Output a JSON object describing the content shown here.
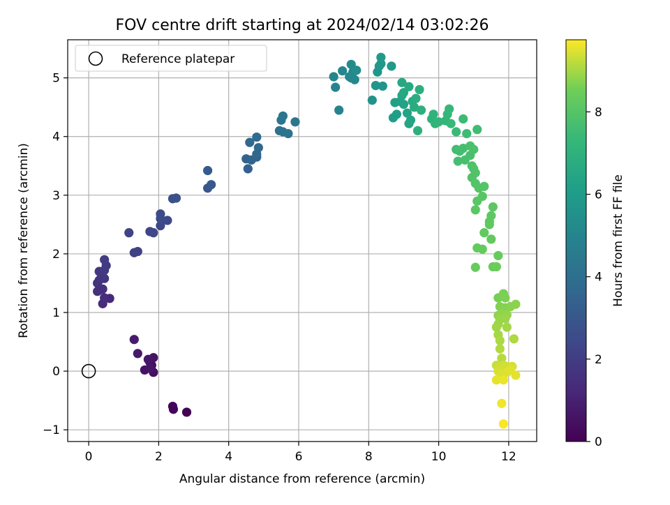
{
  "chart_data": {
    "type": "scatter",
    "title": "FOV centre drift starting at 2024/02/14 03:02:26",
    "xlabel": "Angular distance from reference (arcmin)",
    "ylabel": "Rotation from reference (arcmin)",
    "colorbar_label": "Hours from first FF file",
    "colormap": "viridis",
    "xlim": [
      -0.6,
      12.8
    ],
    "ylim": [
      -1.2,
      5.65
    ],
    "clim": [
      0,
      9.75
    ],
    "x_ticks": [
      0,
      2,
      4,
      6,
      8,
      10,
      12
    ],
    "x_tick_labels": [
      "0",
      "2",
      "4",
      "6",
      "8",
      "10",
      "12"
    ],
    "y_ticks": [
      -1,
      0,
      1,
      2,
      3,
      4,
      5
    ],
    "y_tick_labels": [
      "−1",
      "0",
      "1",
      "2",
      "3",
      "4",
      "5"
    ],
    "colorbar_ticks": [
      0,
      2,
      4,
      6,
      8
    ],
    "colorbar_tick_labels": [
      "0",
      "2",
      "4",
      "6",
      "8"
    ],
    "grid": true,
    "legend": {
      "placement": "top-left",
      "label": "Reference platepar"
    },
    "reference_point": {
      "x": 0,
      "y": 0
    },
    "points": [
      {
        "x": 2.8,
        "y": -0.7,
        "c": 0.0
      },
      {
        "x": 2.4,
        "y": -0.6,
        "c": 0.1
      },
      {
        "x": 2.42,
        "y": -0.65,
        "c": 0.15
      },
      {
        "x": 1.85,
        "y": -0.02,
        "c": 0.4
      },
      {
        "x": 1.8,
        "y": 0.1,
        "c": 0.45
      },
      {
        "x": 1.75,
        "y": 0.15,
        "c": 0.5
      },
      {
        "x": 1.85,
        "y": 0.23,
        "c": 0.55
      },
      {
        "x": 1.6,
        "y": 0.02,
        "c": 0.6
      },
      {
        "x": 1.75,
        "y": 0.05,
        "c": 0.65
      },
      {
        "x": 1.7,
        "y": 0.2,
        "c": 0.7
      },
      {
        "x": 1.4,
        "y": 0.3,
        "c": 0.75
      },
      {
        "x": 1.3,
        "y": 0.54,
        "c": 0.8
      },
      {
        "x": 0.6,
        "y": 1.24,
        "c": 1.3
      },
      {
        "x": 0.4,
        "y": 1.15,
        "c": 1.35
      },
      {
        "x": 0.45,
        "y": 1.25,
        "c": 1.4
      },
      {
        "x": 0.3,
        "y": 1.38,
        "c": 1.45
      },
      {
        "x": 0.25,
        "y": 1.36,
        "c": 1.5
      },
      {
        "x": 0.4,
        "y": 1.4,
        "c": 1.55
      },
      {
        "x": 0.25,
        "y": 1.5,
        "c": 1.6
      },
      {
        "x": 0.3,
        "y": 1.55,
        "c": 1.65
      },
      {
        "x": 0.35,
        "y": 1.58,
        "c": 1.7
      },
      {
        "x": 0.45,
        "y": 1.58,
        "c": 1.75
      },
      {
        "x": 0.3,
        "y": 1.7,
        "c": 1.8
      },
      {
        "x": 0.45,
        "y": 1.72,
        "c": 1.85
      },
      {
        "x": 0.5,
        "y": 1.8,
        "c": 1.9
      },
      {
        "x": 0.45,
        "y": 1.9,
        "c": 1.95
      },
      {
        "x": 1.3,
        "y": 2.02,
        "c": 2.1
      },
      {
        "x": 1.4,
        "y": 2.04,
        "c": 2.15
      },
      {
        "x": 1.15,
        "y": 2.36,
        "c": 2.2
      },
      {
        "x": 1.75,
        "y": 2.38,
        "c": 2.3
      },
      {
        "x": 1.85,
        "y": 2.36,
        "c": 2.35
      },
      {
        "x": 2.05,
        "y": 2.48,
        "c": 2.4
      },
      {
        "x": 2.25,
        "y": 2.57,
        "c": 2.45
      },
      {
        "x": 2.05,
        "y": 2.6,
        "c": 2.5
      },
      {
        "x": 2.05,
        "y": 2.68,
        "c": 2.55
      },
      {
        "x": 2.4,
        "y": 2.94,
        "c": 2.7
      },
      {
        "x": 2.5,
        "y": 2.95,
        "c": 2.75
      },
      {
        "x": 3.4,
        "y": 3.12,
        "c": 3.0
      },
      {
        "x": 3.5,
        "y": 3.18,
        "c": 3.05
      },
      {
        "x": 3.4,
        "y": 3.42,
        "c": 3.1
      },
      {
        "x": 4.55,
        "y": 3.45,
        "c": 3.4
      },
      {
        "x": 4.5,
        "y": 3.62,
        "c": 3.45
      },
      {
        "x": 4.65,
        "y": 3.6,
        "c": 3.5
      },
      {
        "x": 4.8,
        "y": 3.65,
        "c": 3.55
      },
      {
        "x": 4.8,
        "y": 3.7,
        "c": 3.6
      },
      {
        "x": 4.85,
        "y": 3.81,
        "c": 3.65
      },
      {
        "x": 4.6,
        "y": 3.9,
        "c": 3.7
      },
      {
        "x": 4.8,
        "y": 3.99,
        "c": 3.75
      },
      {
        "x": 5.45,
        "y": 4.1,
        "c": 4.1
      },
      {
        "x": 5.55,
        "y": 4.08,
        "c": 4.15
      },
      {
        "x": 5.7,
        "y": 4.05,
        "c": 4.2
      },
      {
        "x": 5.5,
        "y": 4.28,
        "c": 4.25
      },
      {
        "x": 5.55,
        "y": 4.35,
        "c": 4.3
      },
      {
        "x": 5.9,
        "y": 4.25,
        "c": 4.35
      },
      {
        "x": 7.15,
        "y": 4.45,
        "c": 4.9
      },
      {
        "x": 7.05,
        "y": 4.84,
        "c": 4.95
      },
      {
        "x": 7.0,
        "y": 5.02,
        "c": 5.0
      },
      {
        "x": 7.25,
        "y": 5.12,
        "c": 5.05
      },
      {
        "x": 7.45,
        "y": 5.02,
        "c": 5.1
      },
      {
        "x": 7.5,
        "y": 5.0,
        "c": 5.12
      },
      {
        "x": 7.6,
        "y": 4.97,
        "c": 5.15
      },
      {
        "x": 7.55,
        "y": 5.1,
        "c": 5.2
      },
      {
        "x": 7.5,
        "y": 5.23,
        "c": 5.25
      },
      {
        "x": 7.65,
        "y": 5.13,
        "c": 5.3
      },
      {
        "x": 8.1,
        "y": 4.62,
        "c": 5.6
      },
      {
        "x": 8.2,
        "y": 4.87,
        "c": 5.65
      },
      {
        "x": 8.4,
        "y": 4.86,
        "c": 5.7
      },
      {
        "x": 8.25,
        "y": 5.1,
        "c": 5.75
      },
      {
        "x": 8.3,
        "y": 5.2,
        "c": 5.8
      },
      {
        "x": 8.35,
        "y": 5.24,
        "c": 5.85
      },
      {
        "x": 8.65,
        "y": 5.2,
        "c": 5.9
      },
      {
        "x": 8.35,
        "y": 5.35,
        "c": 5.95
      },
      {
        "x": 8.7,
        "y": 4.32,
        "c": 6.1
      },
      {
        "x": 8.8,
        "y": 4.38,
        "c": 6.15
      },
      {
        "x": 8.75,
        "y": 4.58,
        "c": 6.2
      },
      {
        "x": 8.9,
        "y": 4.6,
        "c": 6.25
      },
      {
        "x": 9.0,
        "y": 4.55,
        "c": 6.3
      },
      {
        "x": 9.1,
        "y": 4.4,
        "c": 6.35
      },
      {
        "x": 9.15,
        "y": 4.22,
        "c": 6.4
      },
      {
        "x": 9.2,
        "y": 4.28,
        "c": 6.45
      },
      {
        "x": 8.95,
        "y": 4.7,
        "c": 6.5
      },
      {
        "x": 9.0,
        "y": 4.75,
        "c": 6.55
      },
      {
        "x": 8.95,
        "y": 4.92,
        "c": 6.6
      },
      {
        "x": 9.15,
        "y": 4.85,
        "c": 6.65
      },
      {
        "x": 9.25,
        "y": 4.6,
        "c": 6.7
      },
      {
        "x": 9.3,
        "y": 4.5,
        "c": 6.75
      },
      {
        "x": 9.35,
        "y": 4.65,
        "c": 6.8
      },
      {
        "x": 9.45,
        "y": 4.8,
        "c": 6.85
      },
      {
        "x": 9.5,
        "y": 4.45,
        "c": 6.9
      },
      {
        "x": 9.4,
        "y": 4.1,
        "c": 6.95
      },
      {
        "x": 9.8,
        "y": 4.3,
        "c": 7.0
      },
      {
        "x": 9.85,
        "y": 4.38,
        "c": 7.05
      },
      {
        "x": 9.9,
        "y": 4.22,
        "c": 7.1
      },
      {
        "x": 10.0,
        "y": 4.25,
        "c": 7.15
      },
      {
        "x": 10.2,
        "y": 4.27,
        "c": 7.2
      },
      {
        "x": 10.25,
        "y": 4.38,
        "c": 7.25
      },
      {
        "x": 10.3,
        "y": 4.47,
        "c": 7.3
      },
      {
        "x": 10.35,
        "y": 4.22,
        "c": 7.35
      },
      {
        "x": 10.5,
        "y": 4.08,
        "c": 7.4
      },
      {
        "x": 10.7,
        "y": 4.3,
        "c": 7.45
      },
      {
        "x": 10.8,
        "y": 4.05,
        "c": 7.5
      },
      {
        "x": 11.1,
        "y": 4.12,
        "c": 7.55
      },
      {
        "x": 10.5,
        "y": 3.78,
        "c": 7.6
      },
      {
        "x": 10.6,
        "y": 3.75,
        "c": 7.62
      },
      {
        "x": 10.7,
        "y": 3.8,
        "c": 7.65
      },
      {
        "x": 10.55,
        "y": 3.58,
        "c": 7.7
      },
      {
        "x": 10.75,
        "y": 3.6,
        "c": 7.72
      },
      {
        "x": 10.9,
        "y": 3.68,
        "c": 7.75
      },
      {
        "x": 10.9,
        "y": 3.84,
        "c": 7.78
      },
      {
        "x": 11.0,
        "y": 3.78,
        "c": 7.8
      },
      {
        "x": 10.95,
        "y": 3.5,
        "c": 7.85
      },
      {
        "x": 11.0,
        "y": 3.45,
        "c": 7.88
      },
      {
        "x": 11.05,
        "y": 3.38,
        "c": 7.9
      },
      {
        "x": 10.95,
        "y": 3.3,
        "c": 7.92
      },
      {
        "x": 11.05,
        "y": 3.2,
        "c": 7.95
      },
      {
        "x": 11.15,
        "y": 3.12,
        "c": 7.98
      },
      {
        "x": 11.3,
        "y": 3.15,
        "c": 8.0
      },
      {
        "x": 11.25,
        "y": 2.98,
        "c": 8.05
      },
      {
        "x": 11.1,
        "y": 2.9,
        "c": 8.08
      },
      {
        "x": 11.05,
        "y": 2.75,
        "c": 8.1
      },
      {
        "x": 11.55,
        "y": 2.8,
        "c": 8.15
      },
      {
        "x": 11.5,
        "y": 2.65,
        "c": 8.18
      },
      {
        "x": 11.45,
        "y": 2.55,
        "c": 8.2
      },
      {
        "x": 11.45,
        "y": 2.5,
        "c": 8.22
      },
      {
        "x": 11.3,
        "y": 2.36,
        "c": 8.25
      },
      {
        "x": 11.5,
        "y": 2.25,
        "c": 8.28
      },
      {
        "x": 11.1,
        "y": 2.1,
        "c": 8.3
      },
      {
        "x": 11.25,
        "y": 2.08,
        "c": 8.32
      },
      {
        "x": 11.7,
        "y": 1.97,
        "c": 8.35
      },
      {
        "x": 11.05,
        "y": 1.77,
        "c": 8.38
      },
      {
        "x": 11.55,
        "y": 1.78,
        "c": 8.4
      },
      {
        "x": 11.65,
        "y": 1.78,
        "c": 8.42
      },
      {
        "x": 11.7,
        "y": 1.25,
        "c": 8.6
      },
      {
        "x": 11.85,
        "y": 1.32,
        "c": 8.62
      },
      {
        "x": 11.9,
        "y": 1.25,
        "c": 8.65
      },
      {
        "x": 11.75,
        "y": 1.1,
        "c": 8.7
      },
      {
        "x": 11.9,
        "y": 1.08,
        "c": 8.72
      },
      {
        "x": 12.05,
        "y": 1.1,
        "c": 8.75
      },
      {
        "x": 12.2,
        "y": 1.14,
        "c": 8.78
      },
      {
        "x": 11.7,
        "y": 0.95,
        "c": 8.8
      },
      {
        "x": 11.8,
        "y": 0.98,
        "c": 8.82
      },
      {
        "x": 11.95,
        "y": 0.96,
        "c": 8.85
      },
      {
        "x": 11.75,
        "y": 0.88,
        "c": 8.88
      },
      {
        "x": 11.9,
        "y": 0.9,
        "c": 8.9
      },
      {
        "x": 11.7,
        "y": 0.8,
        "c": 8.92
      },
      {
        "x": 11.65,
        "y": 0.75,
        "c": 8.95
      },
      {
        "x": 11.95,
        "y": 0.75,
        "c": 8.98
      },
      {
        "x": 11.7,
        "y": 0.62,
        "c": 9.0
      },
      {
        "x": 11.75,
        "y": 0.52,
        "c": 9.05
      },
      {
        "x": 12.15,
        "y": 0.55,
        "c": 9.08
      },
      {
        "x": 11.75,
        "y": 0.38,
        "c": 9.1
      },
      {
        "x": 11.8,
        "y": 0.22,
        "c": 9.15
      },
      {
        "x": 11.65,
        "y": 0.1,
        "c": 9.3
      },
      {
        "x": 11.75,
        "y": 0.07,
        "c": 9.32
      },
      {
        "x": 11.85,
        "y": 0.1,
        "c": 9.35
      },
      {
        "x": 11.95,
        "y": 0.08,
        "c": 9.38
      },
      {
        "x": 12.1,
        "y": 0.08,
        "c": 9.4
      },
      {
        "x": 11.7,
        "y": 0.0,
        "c": 9.42
      },
      {
        "x": 11.8,
        "y": -0.05,
        "c": 9.45
      },
      {
        "x": 11.95,
        "y": -0.02,
        "c": 9.48
      },
      {
        "x": 12.05,
        "y": 0.02,
        "c": 9.5
      },
      {
        "x": 12.2,
        "y": -0.07,
        "c": 9.52
      },
      {
        "x": 11.65,
        "y": -0.15,
        "c": 9.55
      },
      {
        "x": 11.85,
        "y": -0.15,
        "c": 9.58
      },
      {
        "x": 11.8,
        "y": -0.55,
        "c": 9.65
      },
      {
        "x": 11.85,
        "y": -0.9,
        "c": 9.72
      }
    ]
  }
}
